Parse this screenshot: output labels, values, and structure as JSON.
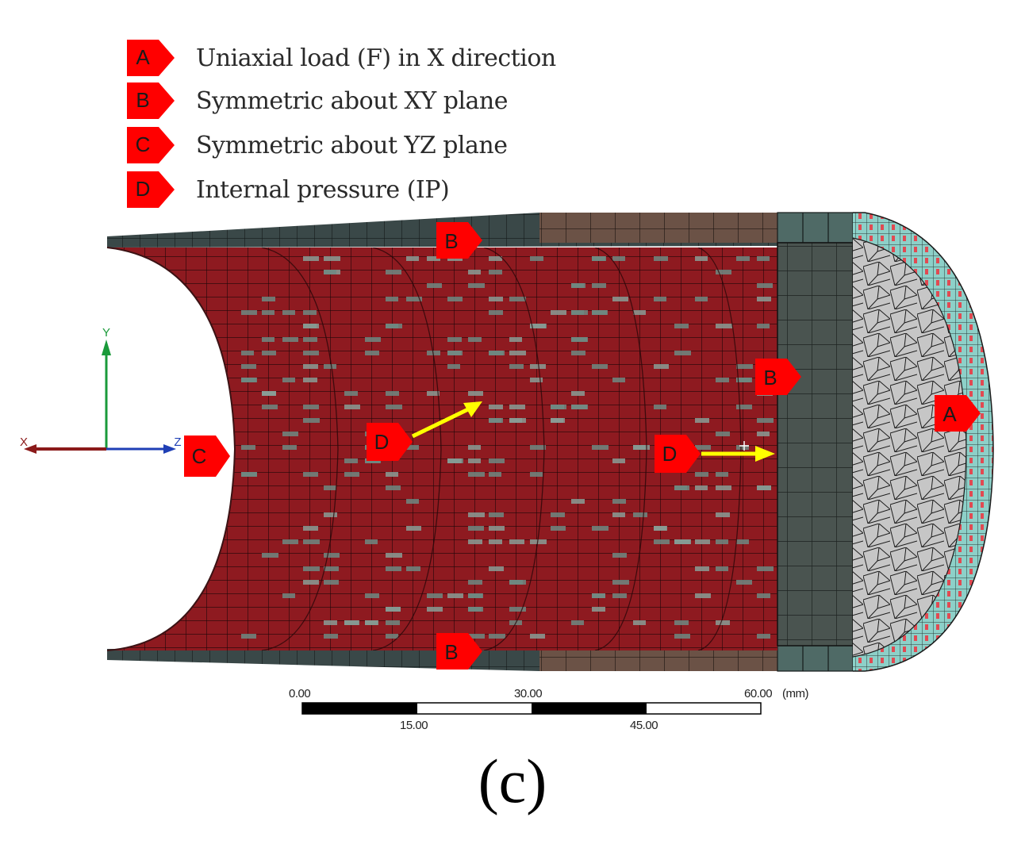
{
  "legend": [
    {
      "tag": "A",
      "label": "Uniaxial load (F) in X direction"
    },
    {
      "tag": "B",
      "label": "Symmetric about XY plane"
    },
    {
      "tag": "C",
      "label": "Symmetric about YZ plane"
    },
    {
      "tag": "D",
      "label": "Internal pressure (IP)"
    }
  ],
  "markers": {
    "b_top": "B",
    "b_bottom": "B",
    "b_right": "B",
    "a_cap": "A",
    "c_left": "C",
    "d_inner": "D",
    "d_end": "D"
  },
  "axes": {
    "x": "X",
    "y": "Y",
    "z": "Z"
  },
  "scale_bar": {
    "ticks_top": [
      "0.00",
      "30.00",
      "60.00"
    ],
    "ticks_bottom": [
      "15.00",
      "45.00"
    ],
    "unit": "(mm)"
  },
  "caption": "(c)",
  "colors": {
    "tag_red": "#ff0000",
    "mesh_red": "#8e1a20",
    "pressure_arrow": "#ffff00",
    "end_plate": "#4a5450",
    "cap_face": "#c4c4c4",
    "rim": "#88cfc7"
  }
}
